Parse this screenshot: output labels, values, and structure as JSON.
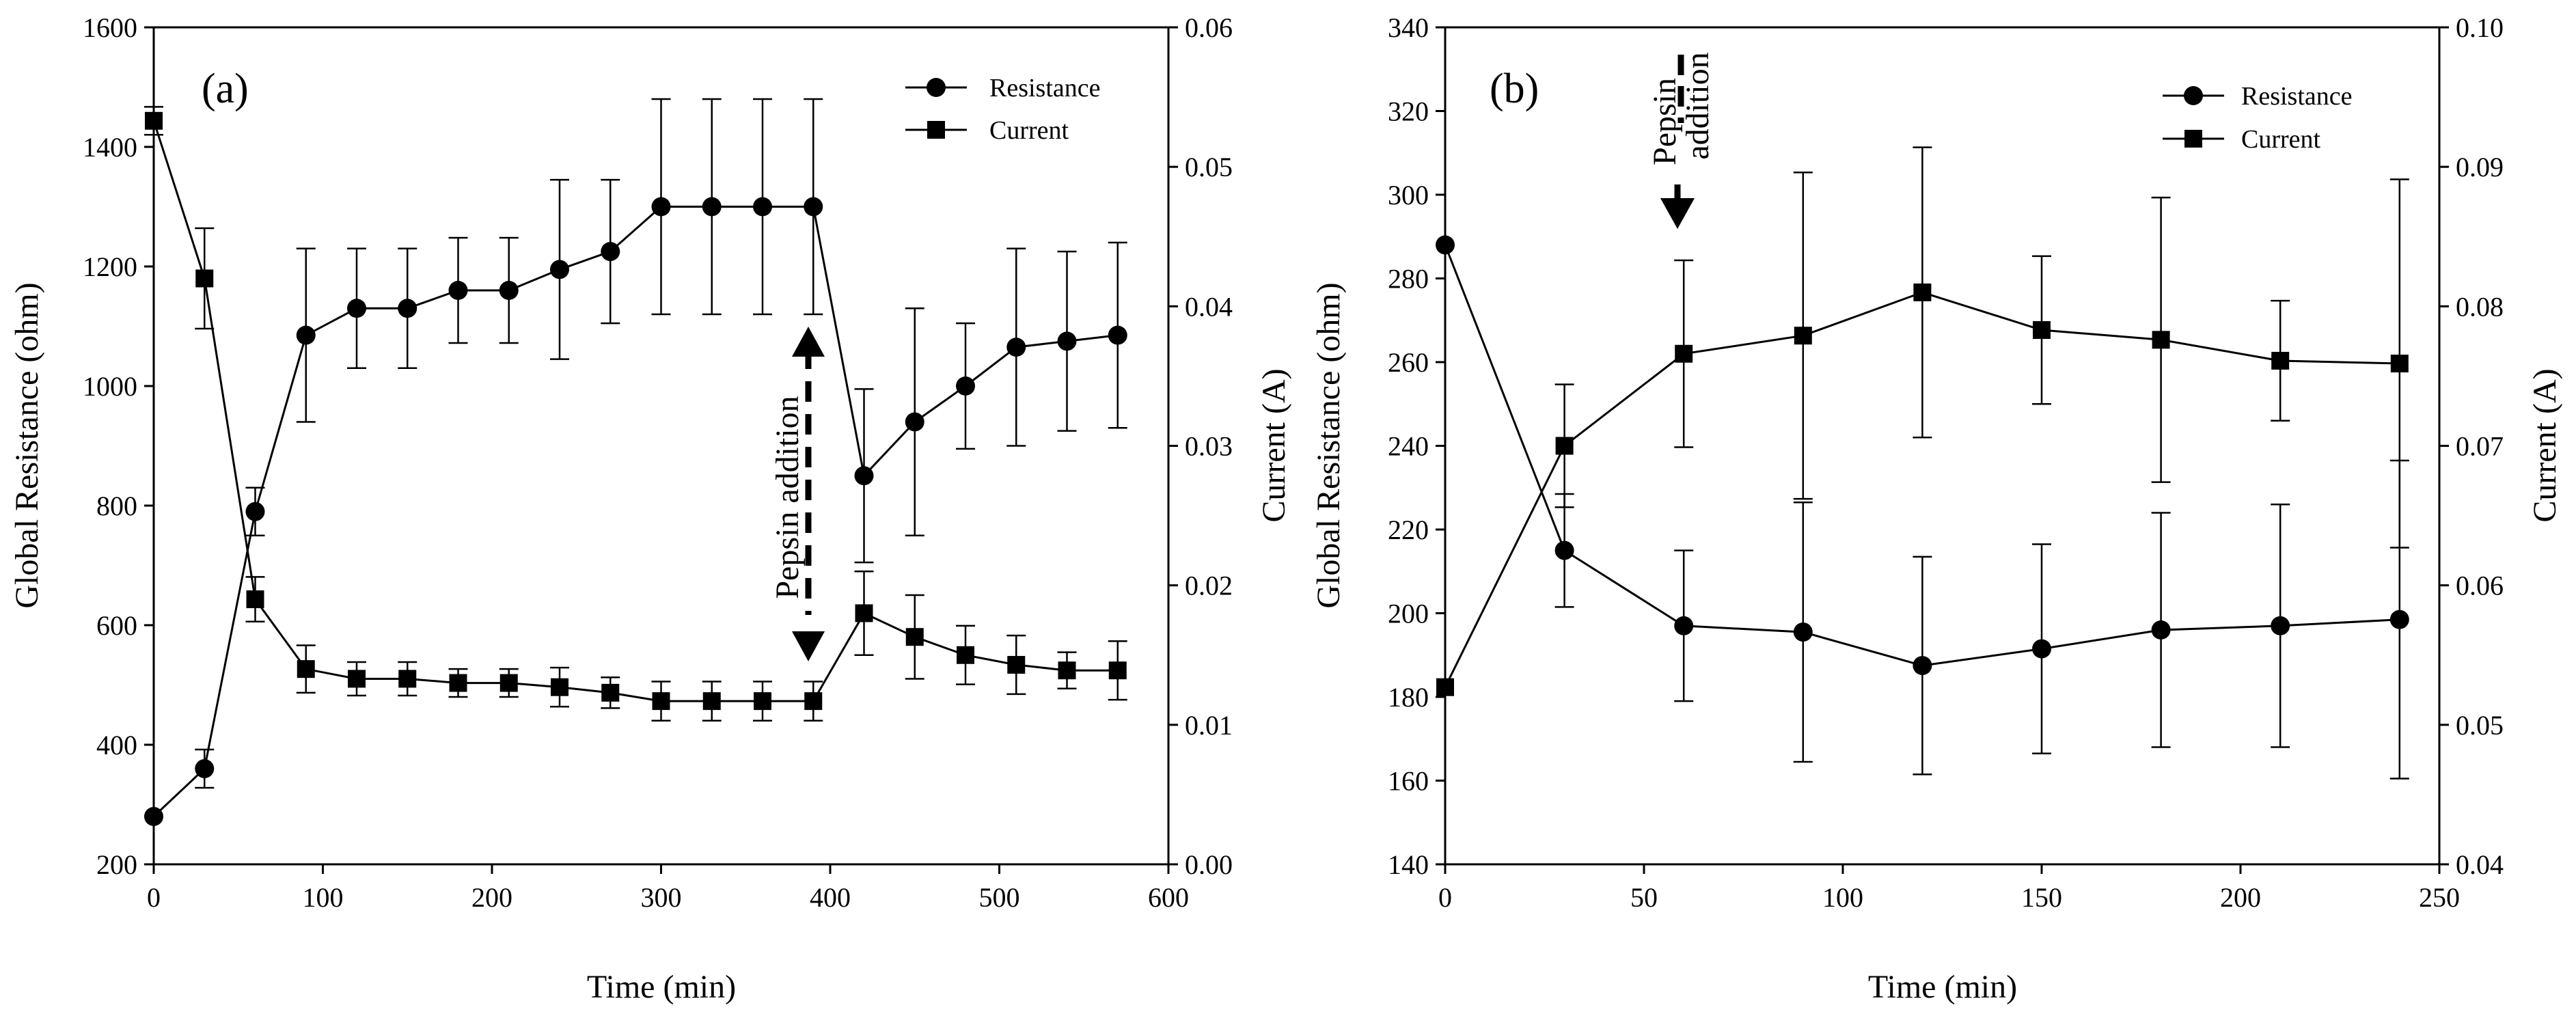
{
  "chart_data": [
    {
      "type": "line",
      "panel_label": "(a)",
      "xlabel": "Time (min)",
      "ylabel": "Global Resistance (ohm)",
      "y2label": "Current (A)",
      "xlim": [
        0,
        600
      ],
      "ylim": [
        200,
        1600
      ],
      "y2lim": [
        0.0,
        0.06
      ],
      "x_ticks": [
        "0",
        "100",
        "200",
        "300",
        "400",
        "500",
        "600"
      ],
      "y_ticks": [
        "200",
        "400",
        "600",
        "800",
        "1000",
        "1200",
        "1400",
        "1600"
      ],
      "y2_ticks": [
        "0.00",
        "0.01",
        "0.02",
        "0.03",
        "0.04",
        "0.05",
        "0.06"
      ],
      "legend": {
        "position": "top-right",
        "entries": [
          "Resistance",
          "Current"
        ]
      },
      "annotation": {
        "text": "Pepsin addition",
        "x": 390
      },
      "series": [
        {
          "name": "Resistance",
          "marker": "circle",
          "axis": "left",
          "x": [
            0,
            30,
            60,
            90,
            120,
            150,
            180,
            210,
            240,
            270,
            300,
            330,
            360,
            390,
            420,
            450,
            480,
            510,
            540,
            570
          ],
          "values": [
            280,
            360,
            790,
            1085,
            1130,
            1130,
            1160,
            1160,
            1195,
            1225,
            1300,
            1300,
            1300,
            1300,
            850,
            940,
            1000,
            1065,
            1075,
            1085
          ],
          "errors": [
            0,
            32,
            40,
            145,
            100,
            100,
            88,
            88,
            150,
            120,
            180,
            180,
            180,
            180,
            145,
            190,
            105,
            165,
            150,
            155
          ]
        },
        {
          "name": "Current",
          "marker": "square",
          "axis": "right",
          "x": [
            0,
            30,
            60,
            90,
            120,
            150,
            180,
            210,
            240,
            270,
            300,
            330,
            360,
            390,
            420,
            450,
            480,
            510,
            540,
            570
          ],
          "values": [
            0.0533,
            0.042,
            0.019,
            0.014,
            0.0133,
            0.0133,
            0.013,
            0.013,
            0.0127,
            0.0123,
            0.0117,
            0.0117,
            0.0117,
            0.0117,
            0.018,
            0.0163,
            0.015,
            0.0143,
            0.0139,
            0.0139
          ],
          "errors": [
            0.001,
            0.0036,
            0.0016,
            0.0017,
            0.0012,
            0.0012,
            0.001,
            0.001,
            0.0014,
            0.0011,
            0.0014,
            0.0014,
            0.0014,
            0.0014,
            0.003,
            0.003,
            0.0021,
            0.0021,
            0.0013,
            0.0021
          ]
        }
      ]
    },
    {
      "type": "line",
      "panel_label": "(b)",
      "xlabel": "Time (min)",
      "ylabel": "Global Resistance (ohm)",
      "y2label": "Current (A)",
      "xlim": [
        0,
        250
      ],
      "ylim": [
        140,
        340
      ],
      "y2lim": [
        0.04,
        0.1
      ],
      "x_ticks": [
        "0",
        "50",
        "100",
        "150",
        "200",
        "250"
      ],
      "y_ticks": [
        "140",
        "160",
        "180",
        "200",
        "220",
        "240",
        "260",
        "280",
        "300",
        "320",
        "340"
      ],
      "y2_ticks": [
        "0.04",
        "0.05",
        "0.06",
        "0.07",
        "0.08",
        "0.09",
        "0.10"
      ],
      "legend": {
        "position": "top-right",
        "entries": [
          "Resistance",
          "Current"
        ]
      },
      "annotation": {
        "text": "Pepsin addition",
        "lines": [
          "Pepsin",
          "addition"
        ],
        "x": 60
      },
      "series": [
        {
          "name": "Resistance",
          "marker": "circle",
          "axis": "left",
          "x": [
            0,
            30,
            60,
            90,
            120,
            150,
            180,
            210,
            240
          ],
          "values": [
            288,
            215,
            197,
            195.5,
            187.5,
            191.5,
            196,
            197,
            198.5
          ],
          "errors": [
            0,
            13.5,
            18,
            31,
            26,
            25,
            28,
            29,
            38
          ]
        },
        {
          "name": "Current",
          "marker": "square",
          "axis": "right",
          "x": [
            0,
            30,
            60,
            90,
            120,
            150,
            180,
            210,
            240
          ],
          "values": [
            0.0527,
            0.07,
            0.0766,
            0.0779,
            0.081,
            0.0783,
            0.0776,
            0.0761,
            0.0759
          ],
          "errors": [
            0,
            0.0044,
            0.0067,
            0.0117,
            0.0104,
            0.0053,
            0.0102,
            0.0043,
            0.0132
          ]
        }
      ]
    }
  ]
}
